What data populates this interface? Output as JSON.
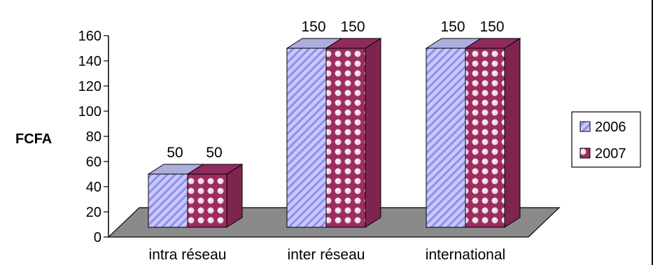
{
  "chart_data": {
    "type": "bar",
    "categories": [
      "intra réseau",
      "inter réseau",
      "international"
    ],
    "series": [
      {
        "name": "2006",
        "values": [
          50,
          150,
          150
        ],
        "color": "#c8c8ff",
        "stripe_color": "#8f8fe8",
        "pattern": "diagonal-stripes"
      },
      {
        "name": "2007",
        "values": [
          50,
          150,
          150
        ],
        "color": "#9b2d5f",
        "dot_color": "#f0d8e6",
        "pattern": "dots"
      }
    ],
    "ylabel": "FCFA",
    "ylim": [
      0,
      160
    ],
    "yticks": [
      0,
      20,
      40,
      60,
      80,
      100,
      120,
      140,
      160
    ],
    "legend_position": "right",
    "grid": false,
    "data_labels": true,
    "floor_color": "#8a8a8a"
  }
}
